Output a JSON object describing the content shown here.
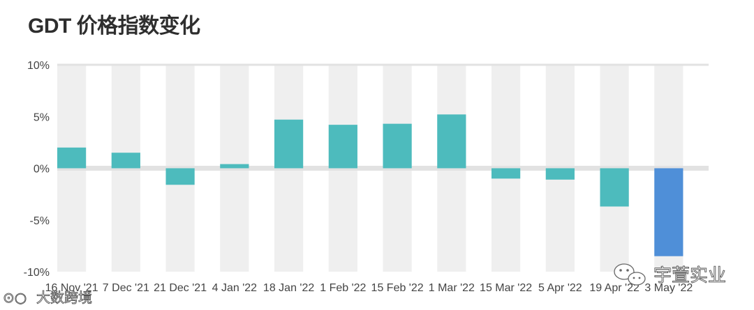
{
  "title": "GDT 价格指数变化",
  "watermarks": {
    "bottom_left": "大数跨境",
    "bottom_right": "宇萱实业"
  },
  "chart_data": {
    "type": "bar",
    "title": "GDT 价格指数变化",
    "xlabel": "",
    "ylabel": "",
    "ylim": [
      -10,
      10
    ],
    "yticks": [
      "10%",
      "5%",
      "0%",
      "-5%",
      "-10%"
    ],
    "ytick_values": [
      10,
      5,
      0,
      -5,
      -10
    ],
    "grid": "alternating vertical bands",
    "categories": [
      "16 Nov '21",
      "7 Dec '21",
      "21 Dec '21",
      "4 Jan '22",
      "18 Jan '22",
      "1 Feb '22",
      "15 Feb '22",
      "1 Mar '22",
      "15 Mar '22",
      "5 Apr '22",
      "19 Apr '22",
      "3 May '22"
    ],
    "values": [
      2.0,
      1.5,
      -1.6,
      0.4,
      4.7,
      4.2,
      4.3,
      5.2,
      -1.0,
      -1.1,
      -3.7,
      -8.5
    ],
    "colors": {
      "default": "#4dbbbd",
      "highlight": "#4f8fd8",
      "band": "#efefef",
      "zero_line": "#e2e2e2",
      "top_line": "#e2e2e2"
    },
    "highlight_index": 11
  }
}
